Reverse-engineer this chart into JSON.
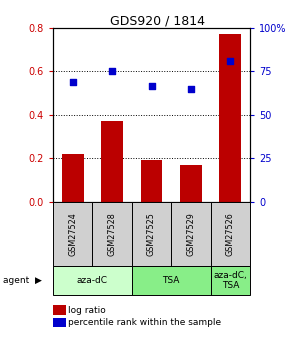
{
  "title": "GDS920 / 1814",
  "samples": [
    "GSM27524",
    "GSM27528",
    "GSM27525",
    "GSM27529",
    "GSM27526"
  ],
  "log_ratio": [
    0.22,
    0.37,
    0.19,
    0.17,
    0.77
  ],
  "percentile_rank_right": [
    68.75,
    75.0,
    66.25,
    65.0,
    80.625
  ],
  "bar_color": "#bb0000",
  "dot_color": "#0000cc",
  "ylim_left": [
    0,
    0.8
  ],
  "ylim_right": [
    0,
    100
  ],
  "yticks_left": [
    0,
    0.2,
    0.4,
    0.6,
    0.8
  ],
  "yticks_right": [
    0,
    25,
    50,
    75,
    100
  ],
  "ytick_labels_right": [
    "0",
    "25",
    "50",
    "75",
    "100%"
  ],
  "agent_groups": [
    {
      "label": "aza-dC",
      "span": [
        0,
        2
      ],
      "color": "#ccffcc"
    },
    {
      "label": "TSA",
      "span": [
        2,
        4
      ],
      "color": "#88ee88"
    },
    {
      "label": "aza-dC,\nTSA",
      "span": [
        4,
        5
      ],
      "color": "#88ee88"
    }
  ],
  "left_tick_color": "#cc0000",
  "right_tick_color": "#0000cc",
  "bar_width": 0.55,
  "legend_log_ratio": "log ratio",
  "legend_percentile": "percentile rank within the sample"
}
